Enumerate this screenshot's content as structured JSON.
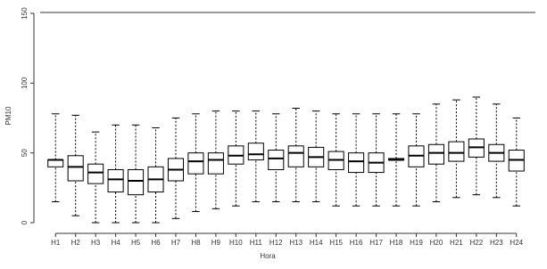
{
  "chart_data": {
    "type": "box",
    "x_label": "Hora",
    "y_label": "PM10",
    "categories": [
      "H1",
      "H2",
      "H3",
      "H4",
      "H5",
      "H6",
      "H7",
      "H8",
      "H9",
      "H10",
      "H11",
      "H12",
      "H13",
      "H14",
      "H15",
      "H16",
      "H17",
      "H18",
      "H19",
      "H20",
      "H21",
      "H22",
      "H23",
      "H24"
    ],
    "min": [
      15,
      5,
      0,
      0,
      0,
      0,
      3,
      8,
      10,
      12,
      15,
      15,
      15,
      15,
      12,
      12,
      12,
      12,
      12,
      15,
      18,
      20,
      18,
      12
    ],
    "q1": [
      40,
      30,
      28,
      22,
      20,
      22,
      30,
      35,
      35,
      42,
      45,
      38,
      40,
      40,
      38,
      36,
      36,
      45,
      40,
      42,
      44,
      47,
      44,
      37
    ],
    "median": [
      45,
      40,
      36,
      31,
      30,
      31,
      38,
      44,
      45,
      48,
      49,
      46,
      50,
      47,
      45,
      44,
      43,
      45,
      48,
      50,
      50,
      54,
      50,
      45
    ],
    "q3": [
      45,
      48,
      42,
      38,
      38,
      40,
      46,
      50,
      50,
      55,
      57,
      52,
      55,
      54,
      51,
      50,
      50,
      46,
      55,
      56,
      58,
      60,
      56,
      52
    ],
    "max": [
      78,
      77,
      65,
      70,
      70,
      68,
      75,
      78,
      80,
      80,
      80,
      78,
      82,
      80,
      78,
      78,
      78,
      78,
      78,
      85,
      88,
      90,
      85,
      75
    ],
    "color": "#000000",
    "ylim": [
      0,
      150
    ],
    "yticks": [
      0,
      50,
      100,
      150
    ]
  }
}
